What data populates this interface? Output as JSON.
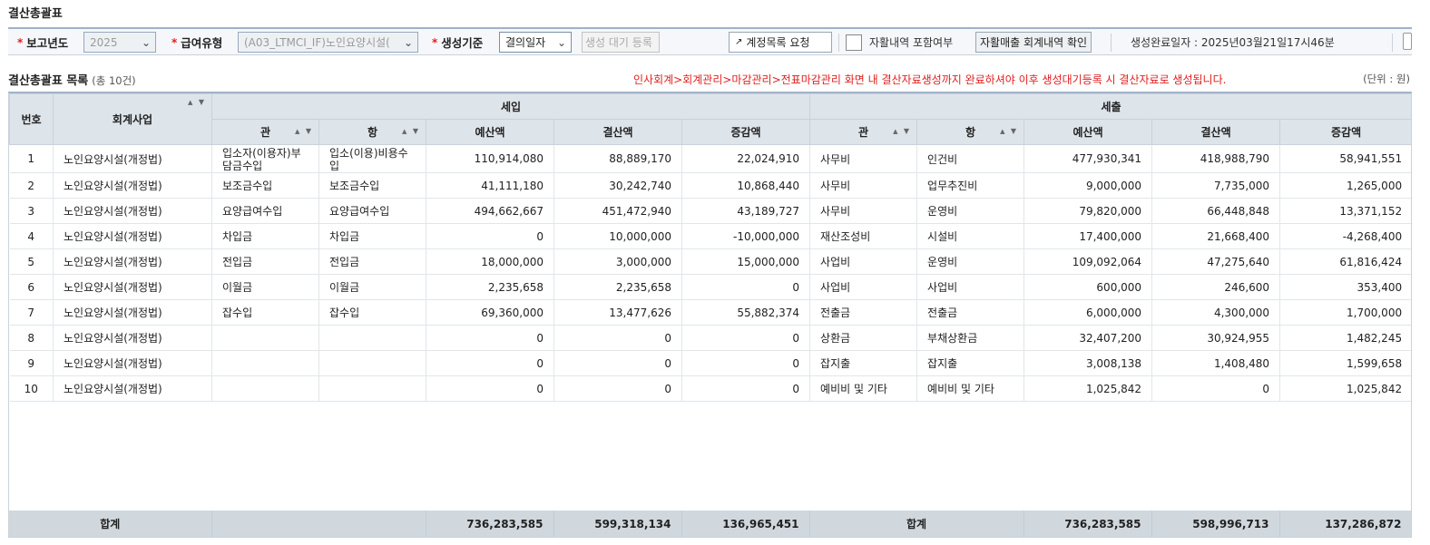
{
  "page_title": "결산총괄표",
  "filters": {
    "report_year_label": "보고년도",
    "report_year_value": "2025",
    "pay_type_label": "급여유형",
    "pay_type_value": "(A03_LTMCI_IF)노인요양시설(",
    "gen_basis_label": "생성기준",
    "gen_basis_value": "결의일자",
    "gen_wait_button": "생성 대기 등록",
    "account_list_button": "계정목록 요청",
    "self_help_label": "자활내역 포함여부",
    "self_help_button": "자활매출 회계내역 확인",
    "completion_label": "생성완료일자 : 2025년03월21일17시46분"
  },
  "section": {
    "title": "결산총괄표 목록",
    "count": "(총 10건)",
    "notice": "인사회계>회계관리>마감관리>전표마감관리 화면 내 결산자료생성까지 완료하셔야 이후 생성대기등록 시 결산자료로 생성됩니다.",
    "unit": "(단위 : 원)"
  },
  "table": {
    "headers": {
      "no": "번호",
      "business": "회계사업",
      "income": "세입",
      "expense": "세출",
      "gwan": "관",
      "hang": "항",
      "budget": "예산액",
      "settlement": "결산액",
      "diff": "증감액"
    },
    "rows": [
      {
        "no": "1",
        "biz": "노인요양시설(개정법)",
        "in_gwan": "입소자(이용자)부담금수입",
        "in_hang": "입소(이용)비용수입",
        "in_budget": "110,914,080",
        "in_settle": "88,889,170",
        "in_diff": "22,024,910",
        "ex_gwan": "사무비",
        "ex_hang": "인건비",
        "ex_budget": "477,930,341",
        "ex_settle": "418,988,790",
        "ex_diff": "58,941,551"
      },
      {
        "no": "2",
        "biz": "노인요양시설(개정법)",
        "in_gwan": "보조금수입",
        "in_hang": "보조금수입",
        "in_budget": "41,111,180",
        "in_settle": "30,242,740",
        "in_diff": "10,868,440",
        "ex_gwan": "사무비",
        "ex_hang": "업무추진비",
        "ex_budget": "9,000,000",
        "ex_settle": "7,735,000",
        "ex_diff": "1,265,000"
      },
      {
        "no": "3",
        "biz": "노인요양시설(개정법)",
        "in_gwan": "요양급여수입",
        "in_hang": "요양급여수입",
        "in_budget": "494,662,667",
        "in_settle": "451,472,940",
        "in_diff": "43,189,727",
        "ex_gwan": "사무비",
        "ex_hang": "운영비",
        "ex_budget": "79,820,000",
        "ex_settle": "66,448,848",
        "ex_diff": "13,371,152"
      },
      {
        "no": "4",
        "biz": "노인요양시설(개정법)",
        "in_gwan": "차입금",
        "in_hang": "차입금",
        "in_budget": "0",
        "in_settle": "10,000,000",
        "in_diff": "-10,000,000",
        "ex_gwan": "재산조성비",
        "ex_hang": "시설비",
        "ex_budget": "17,400,000",
        "ex_settle": "21,668,400",
        "ex_diff": "-4,268,400"
      },
      {
        "no": "5",
        "biz": "노인요양시설(개정법)",
        "in_gwan": "전입금",
        "in_hang": "전입금",
        "in_budget": "18,000,000",
        "in_settle": "3,000,000",
        "in_diff": "15,000,000",
        "ex_gwan": "사업비",
        "ex_hang": "운영비",
        "ex_budget": "109,092,064",
        "ex_settle": "47,275,640",
        "ex_diff": "61,816,424"
      },
      {
        "no": "6",
        "biz": "노인요양시설(개정법)",
        "in_gwan": "이월금",
        "in_hang": "이월금",
        "in_budget": "2,235,658",
        "in_settle": "2,235,658",
        "in_diff": "0",
        "ex_gwan": "사업비",
        "ex_hang": "사업비",
        "ex_budget": "600,000",
        "ex_settle": "246,600",
        "ex_diff": "353,400"
      },
      {
        "no": "7",
        "biz": "노인요양시설(개정법)",
        "in_gwan": "잡수입",
        "in_hang": "잡수입",
        "in_budget": "69,360,000",
        "in_settle": "13,477,626",
        "in_diff": "55,882,374",
        "ex_gwan": "전출금",
        "ex_hang": "전출금",
        "ex_budget": "6,000,000",
        "ex_settle": "4,300,000",
        "ex_diff": "1,700,000"
      },
      {
        "no": "8",
        "biz": "노인요양시설(개정법)",
        "in_gwan": "",
        "in_hang": "",
        "in_budget": "0",
        "in_settle": "0",
        "in_diff": "0",
        "ex_gwan": "상환금",
        "ex_hang": "부채상환금",
        "ex_budget": "32,407,200",
        "ex_settle": "30,924,955",
        "ex_diff": "1,482,245"
      },
      {
        "no": "9",
        "biz": "노인요양시설(개정법)",
        "in_gwan": "",
        "in_hang": "",
        "in_budget": "0",
        "in_settle": "0",
        "in_diff": "0",
        "ex_gwan": "잡지출",
        "ex_hang": "잡지출",
        "ex_budget": "3,008,138",
        "ex_settle": "1,408,480",
        "ex_diff": "1,599,658"
      },
      {
        "no": "10",
        "biz": "노인요양시설(개정법)",
        "in_gwan": "",
        "in_hang": "",
        "in_budget": "0",
        "in_settle": "0",
        "in_diff": "0",
        "ex_gwan": "예비비 및 기타",
        "ex_hang": "예비비 및 기타",
        "ex_budget": "1,025,842",
        "ex_settle": "0",
        "ex_diff": "1,025,842"
      }
    ],
    "totals": {
      "label_in": "합계",
      "in_budget": "736,283,585",
      "in_settle": "599,318,134",
      "in_diff": "136,965,451",
      "label_ex": "합계",
      "ex_budget": "736,283,585",
      "ex_settle": "598,996,713",
      "ex_diff": "137,286,872"
    }
  }
}
